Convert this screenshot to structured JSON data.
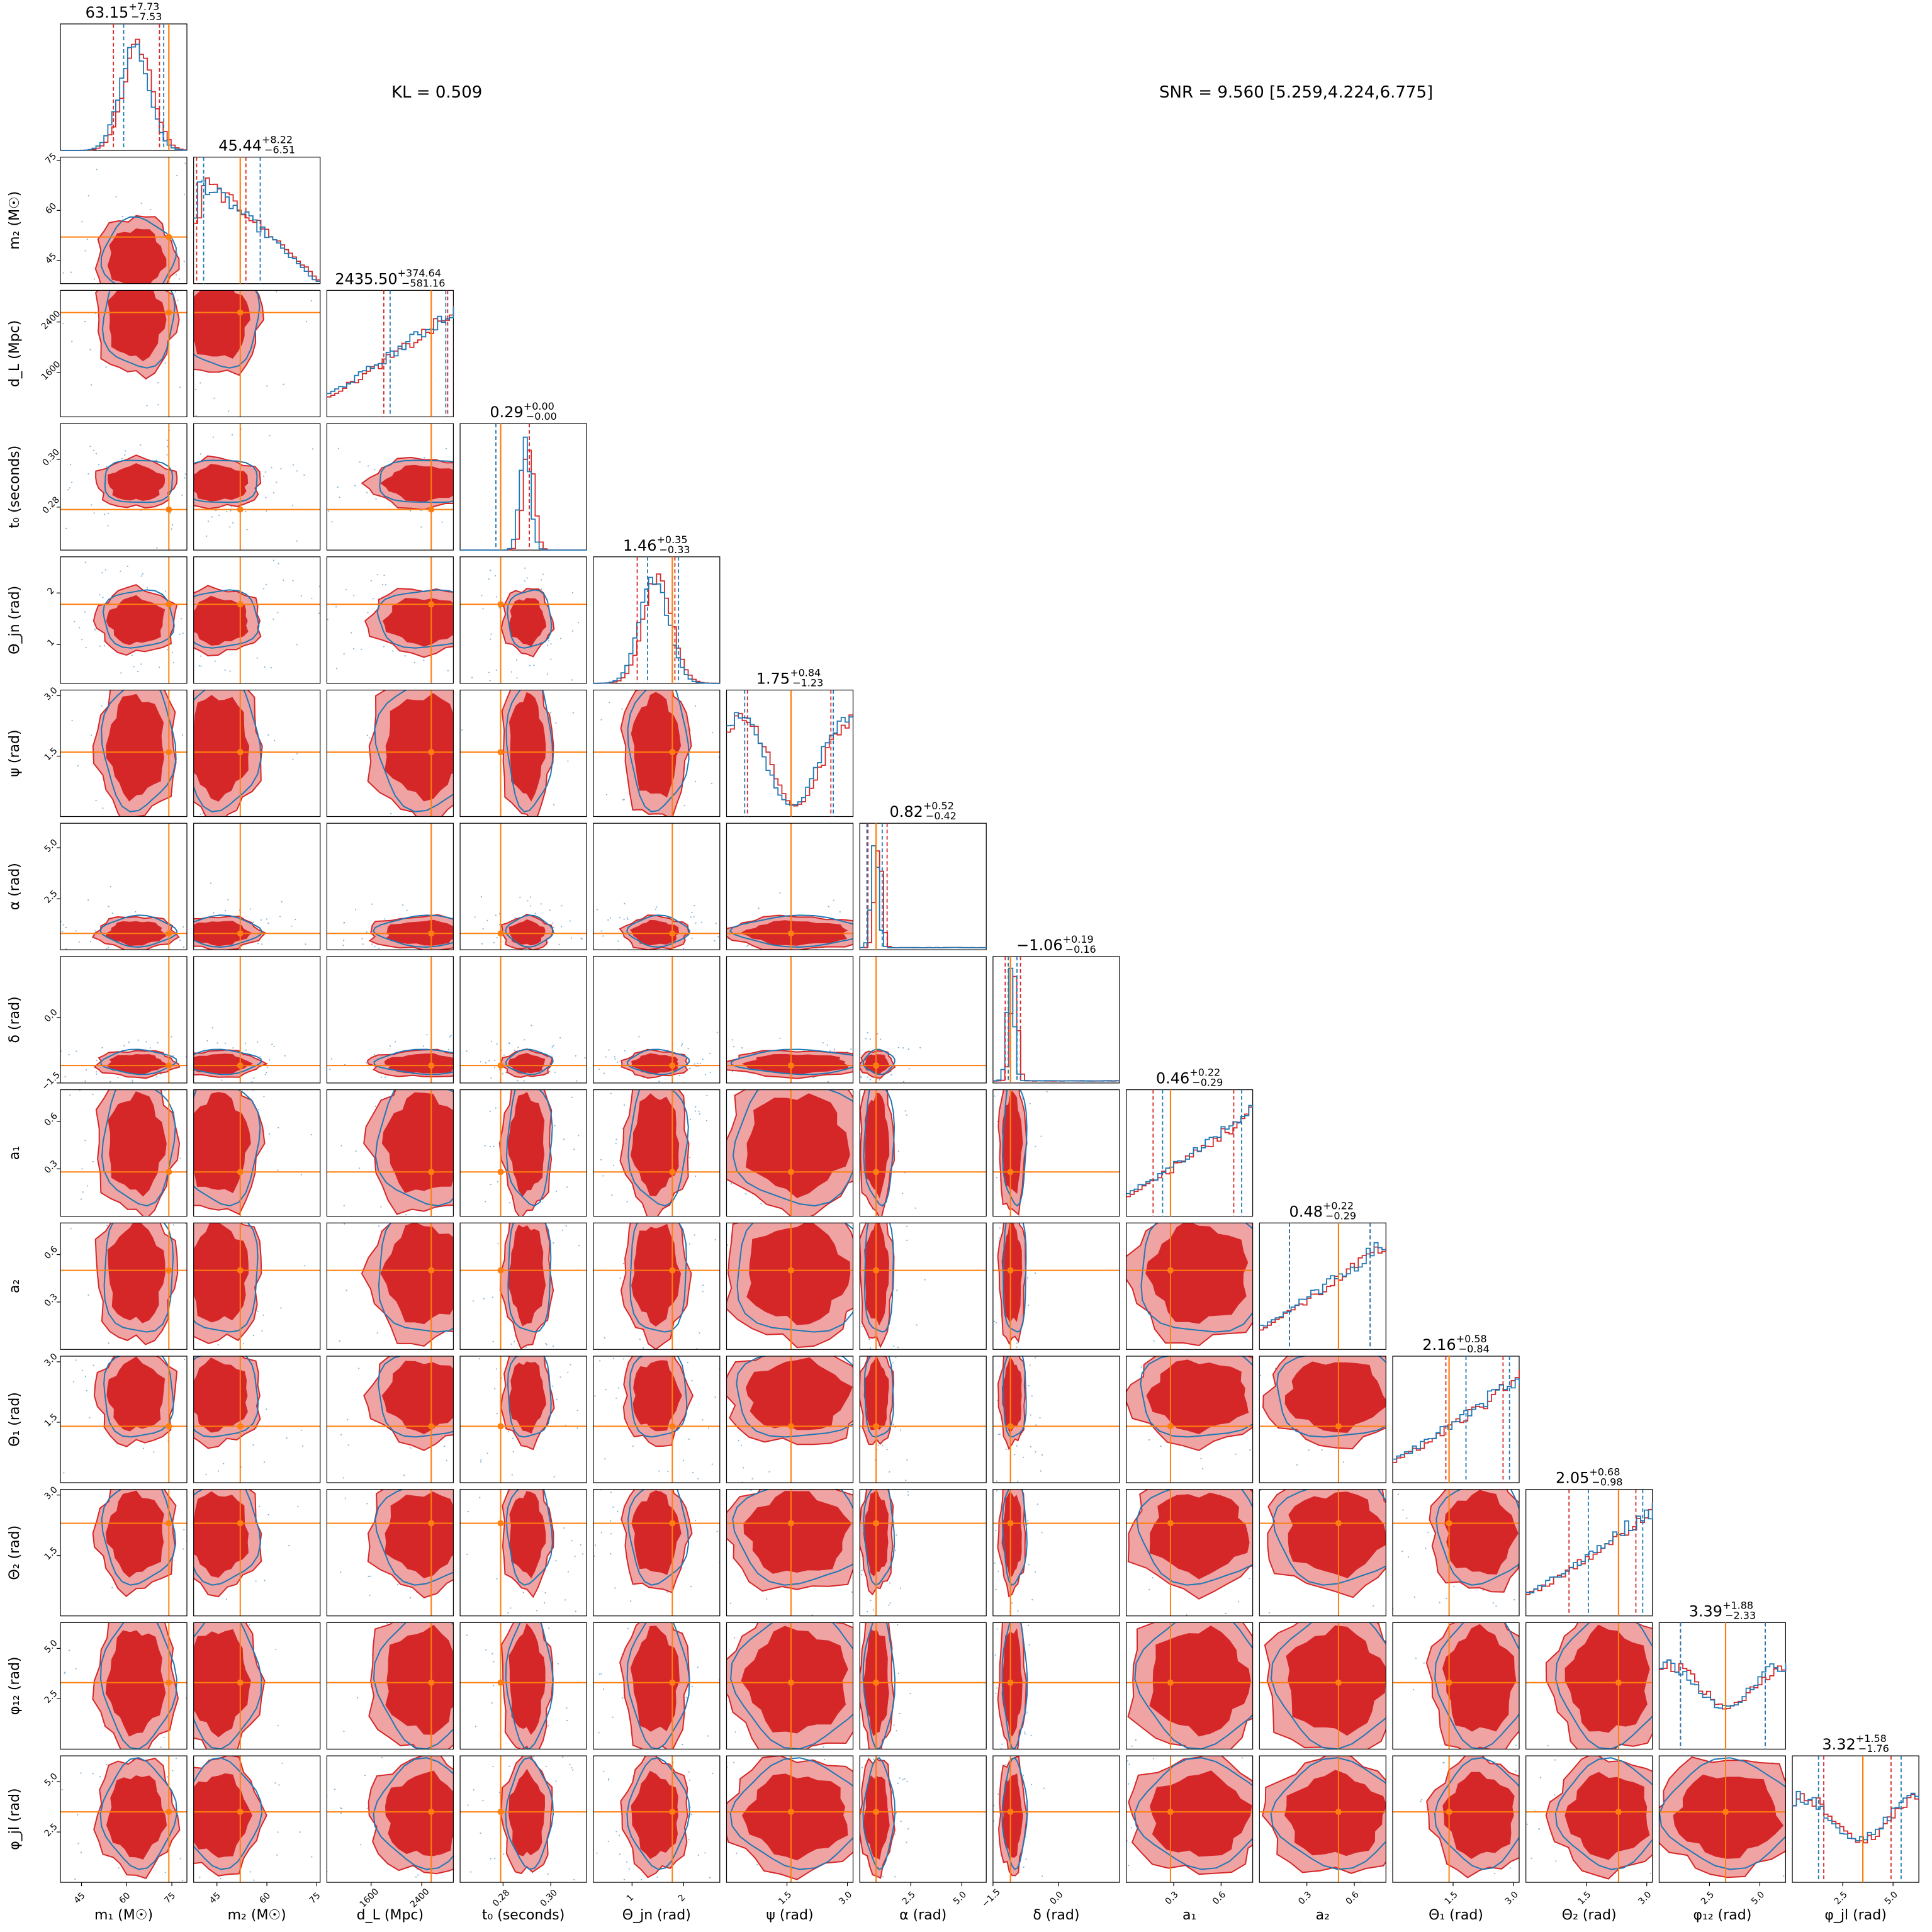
{
  "header": {
    "kl_text": "KL = 0.509",
    "snr_text": "SNR = 9.560 [5.259,4.224,6.775]"
  },
  "colors": {
    "posterior_a": "#d62728",
    "posterior_a_fill": "#d62728",
    "posterior_a_light": "#efa3a3",
    "posterior_b": "#1f77b4",
    "truth": "#ff7f0e"
  },
  "chart_data": {
    "type": "corner",
    "series": [
      {
        "name": "",
        "color": "#d62728"
      },
      {
        "name": "",
        "color": "#1f77b4"
      }
    ],
    "parameters": [
      {
        "id": "m1",
        "label": "m₁ (M☉)",
        "range": [
          38,
          80
        ],
        "ticks": [
          45,
          60,
          75
        ],
        "tick_labels": [
          "45",
          "60",
          "75"
        ],
        "median": 63.15,
        "plus": "+7.73",
        "minus": "−7.53",
        "title_value": "63.15",
        "truth": 74,
        "ci_a": [
          55.6,
          70.9
        ],
        "ci_b": [
          59,
          72.3
        ],
        "hist_shape": "peak",
        "peak": 0.58
      },
      {
        "id": "m2",
        "label": "m₂ (M☉)",
        "range": [
          38,
          76
        ],
        "ticks": [
          45,
          60,
          75
        ],
        "tick_labels": [
          "45",
          "60",
          "75"
        ],
        "median": 45.44,
        "plus": "+8.22",
        "minus": "−6.51",
        "title_value": "45.44",
        "truth": 52,
        "ci_a": [
          38.9,
          53.7
        ],
        "ci_b": [
          41,
          58
        ],
        "hist_shape": "decreasing",
        "peak": 0.15
      },
      {
        "id": "dL",
        "label": "d_L (Mpc)",
        "range": [
          900,
          2900
        ],
        "ticks": [
          1600,
          2400
        ],
        "tick_labels": [
          "1600",
          "2400"
        ],
        "median": 2435.5,
        "plus": "+374.64",
        "minus": "−581.16",
        "title_value": "2435.50",
        "truth": 2550,
        "ci_a": [
          1800,
          2810
        ],
        "ci_b": [
          1900,
          2780
        ],
        "hist_shape": "increasing",
        "peak": 0.9
      },
      {
        "id": "t0",
        "label": "t₀ (seconds)",
        "range": [
          0.262,
          0.315
        ],
        "ticks": [
          0.28,
          0.3
        ],
        "tick_labels": [
          "0.28",
          "0.30"
        ],
        "median": 0.29,
        "plus": "+0.00",
        "minus": "−0.00",
        "title_value": "0.29",
        "truth": 0.279,
        "ci_a": [
          0.279,
          0.291
        ],
        "ci_b": [
          0.277,
          0.279
        ],
        "hist_shape": "narrow",
        "peak": 0.35
      },
      {
        "id": "theta_jn",
        "label": "Θ_jn (rad)",
        "range": [
          0.25,
          2.7
        ],
        "ticks": [
          1,
          2
        ],
        "tick_labels": [
          "1",
          "2"
        ],
        "median": 1.46,
        "plus": "+0.35",
        "minus": "−0.33",
        "title_value": "1.46",
        "truth": 1.78,
        "ci_a": [
          1.1,
          1.83
        ],
        "ci_b": [
          1.3,
          1.9
        ],
        "hist_shape": "peak",
        "peak": 0.5
      },
      {
        "id": "psi",
        "label": "ψ (rad)",
        "range": [
          0,
          3.14
        ],
        "ticks": [
          1.5,
          3.0
        ],
        "tick_labels": [
          "1.5",
          "3.0"
        ],
        "median": 1.75,
        "plus": "+0.84",
        "minus": "−1.23",
        "title_value": "1.75",
        "truth": 1.6,
        "ci_a": [
          0.52,
          2.59
        ],
        "ci_b": [
          0.45,
          2.65
        ],
        "hist_shape": "bimodal",
        "peak": 0.55
      },
      {
        "id": "alpha",
        "label": "α (rad)",
        "range": [
          0,
          6.2
        ],
        "ticks": [
          2.5,
          5.0
        ],
        "tick_labels": [
          "2.5",
          "5.0"
        ],
        "median": 0.82,
        "plus": "+0.52",
        "minus": "−0.42",
        "title_value": "0.82",
        "truth": 0.8,
        "ci_a": [
          0.4,
          1.34
        ],
        "ci_b": [
          0.35,
          1.1
        ],
        "hist_shape": "sharp",
        "peak": 0.12
      },
      {
        "id": "delta",
        "label": "δ (rad)",
        "range": [
          -1.5,
          1.4
        ],
        "ticks": [
          -1.5,
          0.0
        ],
        "tick_labels": [
          "−1.5",
          "0.0"
        ],
        "median": -1.06,
        "plus": "+0.19",
        "minus": "−0.16",
        "title_value": "−1.06",
        "truth": -1.1,
        "ci_a": [
          -1.22,
          -0.87
        ],
        "ci_b": [
          -1.15,
          -0.95
        ],
        "hist_shape": "sharp",
        "peak": 0.1
      },
      {
        "id": "a1",
        "label": "a₁",
        "range": [
          0,
          0.8
        ],
        "ticks": [
          0.3,
          0.6
        ],
        "tick_labels": [
          "0.3",
          "0.6"
        ],
        "median": 0.46,
        "plus": "+0.22",
        "minus": "−0.29",
        "title_value": "0.46",
        "truth": 0.28,
        "ci_a": [
          0.17,
          0.68
        ],
        "ci_b": [
          0.23,
          0.73
        ],
        "hist_shape": "increasing",
        "peak": 0.9
      },
      {
        "id": "a2",
        "label": "a₂",
        "range": [
          0,
          0.8
        ],
        "ticks": [
          0.3,
          0.6
        ],
        "tick_labels": [
          "0.3",
          "0.6"
        ],
        "median": 0.48,
        "plus": "+0.22",
        "minus": "−0.29",
        "title_value": "0.48",
        "truth": 0.5,
        "ci_a": [
          0.19,
          0.7
        ],
        "ci_b": [
          0.19,
          0.7
        ],
        "hist_shape": "increasing",
        "peak": 0.9
      },
      {
        "id": "theta1",
        "label": "Θ₁ (rad)",
        "range": [
          0,
          3.14
        ],
        "ticks": [
          1.5,
          3.0
        ],
        "tick_labels": [
          "1.5",
          "3.0"
        ],
        "median": 2.16,
        "plus": "+0.58",
        "minus": "−0.84",
        "title_value": "2.16",
        "truth": 1.4,
        "ci_a": [
          1.32,
          2.74
        ],
        "ci_b": [
          1.82,
          2.9
        ],
        "hist_shape": "increasing",
        "peak": 0.9
      },
      {
        "id": "theta2",
        "label": "Θ₂ (rad)",
        "range": [
          0,
          3.14
        ],
        "ticks": [
          1.5,
          3.0
        ],
        "tick_labels": [
          "1.5",
          "3.0"
        ],
        "median": 2.05,
        "plus": "+0.68",
        "minus": "−0.98",
        "title_value": "2.05",
        "truth": 2.3,
        "ci_a": [
          1.07,
          2.73
        ],
        "ci_b": [
          1.55,
          2.9
        ],
        "hist_shape": "increasing",
        "peak": 0.9
      },
      {
        "id": "phi12",
        "label": "φ₁₂ (rad)",
        "range": [
          0,
          6.28
        ],
        "ticks": [
          2.5,
          5.0
        ],
        "tick_labels": [
          "2.5",
          "5.0"
        ],
        "median": 3.39,
        "plus": "+1.88",
        "minus": "−2.33",
        "title_value": "3.39",
        "truth": 3.3,
        "ci_a": [
          1.06,
          5.27
        ],
        "ci_b": [
          1.06,
          5.27
        ],
        "hist_shape": "flat",
        "peak": 0.5
      },
      {
        "id": "phi_jl",
        "label": "φ_jl (rad)",
        "range": [
          0,
          6.28
        ],
        "ticks": [
          2.5,
          5.0
        ],
        "tick_labels": [
          "2.5",
          "5.0"
        ],
        "median": 3.32,
        "plus": "+1.58",
        "minus": "−1.76",
        "title_value": "3.32",
        "truth": 3.5,
        "ci_a": [
          1.56,
          4.9
        ],
        "ci_b": [
          1.3,
          5.4
        ],
        "hist_shape": "flat",
        "peak": 0.5
      }
    ]
  }
}
